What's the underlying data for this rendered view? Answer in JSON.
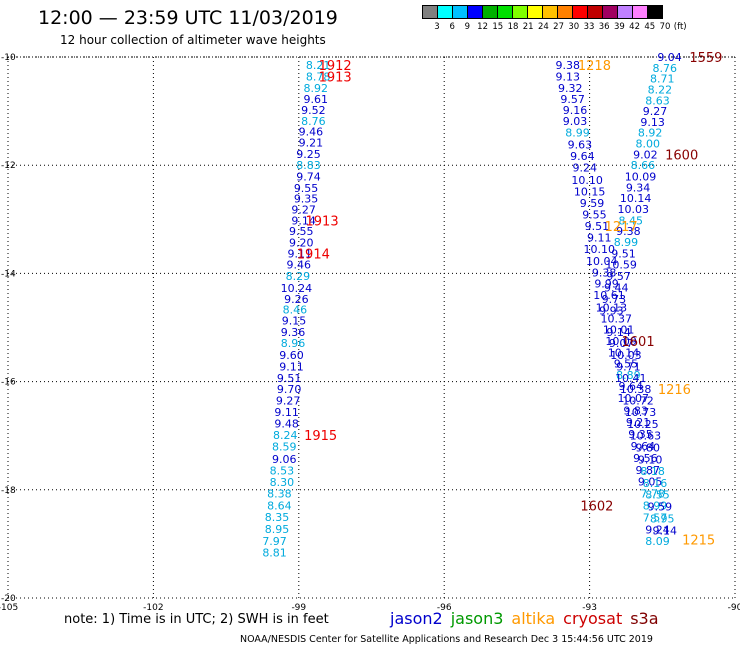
{
  "header": {
    "title": "12:00 — 23:59 UTC 11/03/2019",
    "subtitle": "12 hour collection of altimeter wave heights"
  },
  "color_scale": {
    "colors": [
      "#808080",
      "#00ffff",
      "#00c0ff",
      "#0000ff",
      "#00b000",
      "#00e000",
      "#80ff00",
      "#ffff00",
      "#ffc000",
      "#ff8000",
      "#ff0000",
      "#c00000",
      "#a00060",
      "#c080ff",
      "#ff80ff",
      "#000000"
    ],
    "ticks": [
      "3",
      "6",
      "9",
      "12",
      "15",
      "18",
      "21",
      "24",
      "27",
      "30",
      "33",
      "36",
      "39",
      "42",
      "45",
      "70",
      "(ft)"
    ]
  },
  "footer": {
    "note": "note:  1) Time is in UTC;  2) SWH is in feet",
    "credit": "NOAA/NESDIS Center for Satellite Applications and Research     Dec  3 15:44:56 UTC 2019",
    "satellites": [
      {
        "name": "jason2",
        "color": "#0000cc"
      },
      {
        "name": "jason3",
        "color": "#009900"
      },
      {
        "name": "altika",
        "color": "#ff9900"
      },
      {
        "name": "cryosat",
        "color": "#cc0000"
      },
      {
        "name": "s3a",
        "color": "#800000"
      }
    ]
  },
  "chart_data": {
    "type": "scatter",
    "title": "12 hour collection of altimeter wave heights",
    "xlabel": "",
    "ylabel": "",
    "xlim": [
      -105,
      -90
    ],
    "ylim": [
      -20,
      -10
    ],
    "x_ticks": [
      "-105",
      "-102",
      "-99",
      "-96",
      "-93",
      "-90"
    ],
    "y_ticks": [
      "-10",
      "-12",
      "-14",
      "-16",
      "-18",
      "-20"
    ],
    "grid": true,
    "colors": {
      "light": "#00aadd",
      "dark": "#0000cc",
      "red": "#ee0000",
      "maroon": "#880000",
      "orange": "#ff9900"
    },
    "series": [
      {
        "track": 1,
        "points": [
          {
            "lon": -98.6,
            "lat": -10.15,
            "v": "8.21",
            "c": "light"
          },
          {
            "lon": -98.6,
            "lat": -10.36,
            "v": "8.78",
            "c": "light"
          },
          {
            "lon": -98.65,
            "lat": -10.57,
            "v": "8.92",
            "c": "light"
          },
          {
            "lon": -98.65,
            "lat": -10.78,
            "v": "9.61",
            "c": "dark"
          },
          {
            "lon": -98.7,
            "lat": -10.98,
            "v": "9.52",
            "c": "dark"
          },
          {
            "lon": -98.7,
            "lat": -11.18,
            "v": "8.76",
            "c": "light"
          },
          {
            "lon": -98.75,
            "lat": -11.38,
            "v": "9.46",
            "c": "dark"
          },
          {
            "lon": -98.75,
            "lat": -11.58,
            "v": "9.21",
            "c": "dark"
          },
          {
            "lon": -98.8,
            "lat": -11.79,
            "v": "9.25",
            "c": "dark"
          },
          {
            "lon": -98.8,
            "lat": -12.0,
            "v": "8.83",
            "c": "light"
          },
          {
            "lon": -98.8,
            "lat": -12.21,
            "v": "9.74",
            "c": "dark"
          },
          {
            "lon": -98.85,
            "lat": -12.42,
            "v": "9.55",
            "c": "dark"
          },
          {
            "lon": -98.85,
            "lat": -12.62,
            "v": "9.35",
            "c": "dark"
          },
          {
            "lon": -98.9,
            "lat": -12.82,
            "v": "9.27",
            "c": "dark"
          },
          {
            "lon": -98.9,
            "lat": -13.02,
            "v": "9.14",
            "c": "dark"
          },
          {
            "lon": -98.95,
            "lat": -13.22,
            "v": "9.55",
            "c": "dark"
          },
          {
            "lon": -98.95,
            "lat": -13.43,
            "v": "9.20",
            "c": "dark"
          },
          {
            "lon": -98.98,
            "lat": -13.63,
            "v": "9.11",
            "c": "dark"
          },
          {
            "lon": -99.0,
            "lat": -13.84,
            "v": "9.46",
            "c": "dark"
          },
          {
            "lon": -99.02,
            "lat": -14.05,
            "v": "8.29",
            "c": "light"
          },
          {
            "lon": -99.05,
            "lat": -14.27,
            "v": "10.24",
            "c": "dark"
          },
          {
            "lon": -99.05,
            "lat": -14.47,
            "v": "9.26",
            "c": "dark"
          },
          {
            "lon": -99.08,
            "lat": -14.67,
            "v": "8.46",
            "c": "light"
          },
          {
            "lon": -99.1,
            "lat": -14.87,
            "v": "9.15",
            "c": "dark"
          },
          {
            "lon": -99.12,
            "lat": -15.08,
            "v": "9.36",
            "c": "dark"
          },
          {
            "lon": -99.12,
            "lat": -15.29,
            "v": "8.96",
            "c": "light"
          },
          {
            "lon": -99.15,
            "lat": -15.51,
            "v": "9.60",
            "c": "dark"
          },
          {
            "lon": -99.15,
            "lat": -15.72,
            "v": "9.11",
            "c": "dark"
          },
          {
            "lon": -99.2,
            "lat": -15.93,
            "v": "9.51",
            "c": "dark"
          },
          {
            "lon": -99.2,
            "lat": -16.14,
            "v": "9.70",
            "c": "dark"
          },
          {
            "lon": -99.22,
            "lat": -16.35,
            "v": "9.27",
            "c": "dark"
          },
          {
            "lon": -99.25,
            "lat": -16.56,
            "v": "9.11",
            "c": "dark"
          },
          {
            "lon": -99.25,
            "lat": -16.77,
            "v": "9.48",
            "c": "dark"
          },
          {
            "lon": -99.28,
            "lat": -16.99,
            "v": "8.24",
            "c": "light"
          },
          {
            "lon": -99.3,
            "lat": -17.2,
            "v": "8.59",
            "c": "light"
          },
          {
            "lon": -99.3,
            "lat": -17.43,
            "v": "9.06",
            "c": "dark"
          },
          {
            "lon": -99.35,
            "lat": -17.64,
            "v": "8.53",
            "c": "light"
          },
          {
            "lon": -99.35,
            "lat": -17.86,
            "v": "8.30",
            "c": "light"
          },
          {
            "lon": -99.4,
            "lat": -18.07,
            "v": "8.38",
            "c": "light"
          },
          {
            "lon": -99.4,
            "lat": -18.29,
            "v": "8.64",
            "c": "light"
          },
          {
            "lon": -99.45,
            "lat": -18.5,
            "v": "8.35",
            "c": "light"
          },
          {
            "lon": -99.45,
            "lat": -18.72,
            "v": "8.95",
            "c": "light"
          },
          {
            "lon": -99.5,
            "lat": -18.95,
            "v": "7.97",
            "c": "light"
          },
          {
            "lon": -99.5,
            "lat": -19.16,
            "v": "8.81",
            "c": "light"
          }
        ]
      },
      {
        "track": 2,
        "points": [
          {
            "lon": -93.45,
            "lat": -10.15,
            "v": "9.38",
            "c": "dark"
          },
          {
            "lon": -93.45,
            "lat": -10.36,
            "v": "9.13",
            "c": "dark"
          },
          {
            "lon": -93.4,
            "lat": -10.57,
            "v": "9.32",
            "c": "dark"
          },
          {
            "lon": -93.35,
            "lat": -10.78,
            "v": "9.57",
            "c": "dark"
          },
          {
            "lon": -93.3,
            "lat": -10.98,
            "v": "9.16",
            "c": "dark"
          },
          {
            "lon": -93.3,
            "lat": -11.18,
            "v": "9.03",
            "c": "dark"
          },
          {
            "lon": -93.25,
            "lat": -11.4,
            "v": "8.99",
            "c": "light"
          },
          {
            "lon": -93.2,
            "lat": -11.62,
            "v": "9.63",
            "c": "dark"
          },
          {
            "lon": -93.15,
            "lat": -11.83,
            "v": "9.64",
            "c": "dark"
          },
          {
            "lon": -93.1,
            "lat": -12.04,
            "v": "9.24",
            "c": "dark"
          },
          {
            "lon": -93.05,
            "lat": -12.27,
            "v": "10.10",
            "c": "dark"
          },
          {
            "lon": -93.0,
            "lat": -12.49,
            "v": "10.15",
            "c": "dark"
          },
          {
            "lon": -92.95,
            "lat": -12.7,
            "v": "9.59",
            "c": "dark"
          },
          {
            "lon": -92.9,
            "lat": -12.91,
            "v": "9.55",
            "c": "dark"
          },
          {
            "lon": -92.85,
            "lat": -13.12,
            "v": "9.51",
            "c": "dark"
          },
          {
            "lon": -92.8,
            "lat": -13.34,
            "v": "9.11",
            "c": "dark"
          },
          {
            "lon": -92.8,
            "lat": -13.55,
            "v": "10.10",
            "c": "dark"
          },
          {
            "lon": -92.75,
            "lat": -13.77,
            "v": "10.04",
            "c": "dark"
          },
          {
            "lon": -92.7,
            "lat": -13.98,
            "v": "9.38",
            "c": "dark"
          },
          {
            "lon": -92.65,
            "lat": -14.19,
            "v": "9.99",
            "c": "dark"
          },
          {
            "lon": -92.6,
            "lat": -14.4,
            "v": "10.61",
            "c": "dark"
          },
          {
            "lon": -92.55,
            "lat": -14.63,
            "v": "10.13",
            "c": "dark"
          },
          {
            "lon": -92.45,
            "lat": -14.83,
            "v": "10.37",
            "c": "dark"
          },
          {
            "lon": -92.4,
            "lat": -15.04,
            "v": "10.01",
            "c": "dark"
          },
          {
            "lon": -92.35,
            "lat": -15.25,
            "v": "10.09",
            "c": "dark"
          },
          {
            "lon": -92.3,
            "lat": -15.46,
            "v": "10.14",
            "c": "dark"
          },
          {
            "lon": -92.25,
            "lat": -15.67,
            "v": "9.55",
            "c": "dark"
          },
          {
            "lon": -92.2,
            "lat": -15.88,
            "v": "8.89",
            "c": "light"
          },
          {
            "lon": -92.15,
            "lat": -16.08,
            "v": "9.64",
            "c": "dark"
          },
          {
            "lon": -92.1,
            "lat": -16.3,
            "v": "10.07",
            "c": "dark"
          },
          {
            "lon": -92.05,
            "lat": -16.53,
            "v": "9.83",
            "c": "dark"
          },
          {
            "lon": -92.0,
            "lat": -16.75,
            "v": "9.21",
            "c": "dark"
          },
          {
            "lon": -91.95,
            "lat": -16.97,
            "v": "9.35",
            "c": "dark"
          },
          {
            "lon": -91.9,
            "lat": -17.19,
            "v": "9.64",
            "c": "dark"
          },
          {
            "lon": -91.85,
            "lat": -17.41,
            "v": "9.56",
            "c": "dark"
          },
          {
            "lon": -91.8,
            "lat": -17.63,
            "v": "9.87",
            "c": "dark"
          },
          {
            "lon": -91.75,
            "lat": -17.85,
            "v": "9.05",
            "c": "dark"
          },
          {
            "lon": -91.7,
            "lat": -18.07,
            "v": "7.78",
            "c": "light"
          },
          {
            "lon": -91.65,
            "lat": -18.29,
            "v": "8.99",
            "c": "light"
          },
          {
            "lon": -91.65,
            "lat": -18.51,
            "v": "7.57",
            "c": "light"
          },
          {
            "lon": -91.6,
            "lat": -18.73,
            "v": "9.24",
            "c": "dark"
          },
          {
            "lon": -91.6,
            "lat": -18.95,
            "v": "8.09",
            "c": "light"
          }
        ]
      },
      {
        "track": 3,
        "points": [
          {
            "lon": -91.35,
            "lat": -10.0,
            "v": "9.04",
            "c": "dark"
          },
          {
            "lon": -91.45,
            "lat": -10.2,
            "v": "8.76",
            "c": "light"
          },
          {
            "lon": -91.5,
            "lat": -10.4,
            "v": "8.71",
            "c": "light"
          },
          {
            "lon": -91.55,
            "lat": -10.6,
            "v": "8.22",
            "c": "light"
          },
          {
            "lon": -91.6,
            "lat": -10.8,
            "v": "8.63",
            "c": "light"
          },
          {
            "lon": -91.65,
            "lat": -11.0,
            "v": "9.27",
            "c": "dark"
          },
          {
            "lon": -91.7,
            "lat": -11.2,
            "v": "9.13",
            "c": "dark"
          },
          {
            "lon": -91.75,
            "lat": -11.4,
            "v": "8.92",
            "c": "light"
          },
          {
            "lon": -91.8,
            "lat": -11.6,
            "v": "8.00",
            "c": "light"
          },
          {
            "lon": -91.85,
            "lat": -11.8,
            "v": "9.02",
            "c": "dark"
          },
          {
            "lon": -91.9,
            "lat": -12.0,
            "v": "8.66",
            "c": "light"
          },
          {
            "lon": -91.95,
            "lat": -12.21,
            "v": "10.09",
            "c": "dark"
          },
          {
            "lon": -92.0,
            "lat": -12.41,
            "v": "9.34",
            "c": "dark"
          },
          {
            "lon": -92.05,
            "lat": -12.61,
            "v": "10.14",
            "c": "dark"
          },
          {
            "lon": -92.1,
            "lat": -12.81,
            "v": "10.03",
            "c": "dark"
          },
          {
            "lon": -92.15,
            "lat": -13.02,
            "v": "8.45",
            "c": "light"
          },
          {
            "lon": -92.2,
            "lat": -13.22,
            "v": "9.38",
            "c": "dark"
          },
          {
            "lon": -92.25,
            "lat": -13.42,
            "v": "8.99",
            "c": "light"
          },
          {
            "lon": -92.3,
            "lat": -13.63,
            "v": "9.51",
            "c": "dark"
          },
          {
            "lon": -92.35,
            "lat": -13.84,
            "v": "10.59",
            "c": "dark"
          },
          {
            "lon": -92.4,
            "lat": -14.05,
            "v": "9.57",
            "c": "dark"
          },
          {
            "lon": -92.45,
            "lat": -14.26,
            "v": "9.44",
            "c": "dark"
          },
          {
            "lon": -92.5,
            "lat": -14.47,
            "v": "9.73",
            "c": "dark"
          },
          {
            "lon": -92.55,
            "lat": -14.69,
            "v": "9.93",
            "c": "dark"
          },
          {
            "lon": -92.4,
            "lat": -15.08,
            "v": "9.14",
            "c": "dark"
          },
          {
            "lon": -92.35,
            "lat": -15.29,
            "v": "9.07",
            "c": "dark"
          },
          {
            "lon": -92.25,
            "lat": -15.51,
            "v": "10.03",
            "c": "dark"
          },
          {
            "lon": -92.2,
            "lat": -15.72,
            "v": "9.71",
            "c": "dark"
          },
          {
            "lon": -92.15,
            "lat": -15.93,
            "v": "10.41",
            "c": "dark"
          },
          {
            "lon": -92.05,
            "lat": -16.14,
            "v": "10.38",
            "c": "dark"
          },
          {
            "lon": -92.0,
            "lat": -16.35,
            "v": "10.72",
            "c": "dark"
          },
          {
            "lon": -91.95,
            "lat": -16.56,
            "v": "10.73",
            "c": "dark"
          },
          {
            "lon": -91.9,
            "lat": -16.78,
            "v": "10.25",
            "c": "dark"
          },
          {
            "lon": -91.85,
            "lat": -17.0,
            "v": "10.63",
            "c": "dark"
          },
          {
            "lon": -91.8,
            "lat": -17.22,
            "v": "9.80",
            "c": "dark"
          },
          {
            "lon": -91.75,
            "lat": -17.44,
            "v": "9.10",
            "c": "dark"
          },
          {
            "lon": -91.7,
            "lat": -17.65,
            "v": "8.18",
            "c": "light"
          },
          {
            "lon": -91.65,
            "lat": -17.87,
            "v": "8.16",
            "c": "light"
          },
          {
            "lon": -91.6,
            "lat": -18.09,
            "v": "8.55",
            "c": "light"
          },
          {
            "lon": -91.55,
            "lat": -18.31,
            "v": "9.59",
            "c": "dark"
          },
          {
            "lon": -91.5,
            "lat": -18.53,
            "v": "8.95",
            "c": "light"
          },
          {
            "lon": -91.45,
            "lat": -18.75,
            "v": "9.14",
            "c": "dark"
          }
        ]
      }
    ],
    "time_labels": [
      {
        "lon": -98.25,
        "lat": -10.15,
        "v": "1912",
        "c": "red"
      },
      {
        "lon": -98.25,
        "lat": -10.36,
        "v": "1913",
        "c": "red"
      },
      {
        "lon": -98.52,
        "lat": -13.02,
        "v": "1913",
        "c": "red"
      },
      {
        "lon": -98.7,
        "lat": -13.63,
        "v": "1914",
        "c": "red"
      },
      {
        "lon": -98.55,
        "lat": -16.99,
        "v": "1915",
        "c": "red"
      },
      {
        "lon": -92.9,
        "lat": -10.15,
        "v": "1218",
        "c": "orange"
      },
      {
        "lon": -92.35,
        "lat": -13.12,
        "v": "1217",
        "c": "orange"
      },
      {
        "lon": -91.25,
        "lat": -16.14,
        "v": "1216",
        "c": "orange"
      },
      {
        "lon": -90.75,
        "lat": -18.92,
        "v": "1215",
        "c": "orange"
      },
      {
        "lon": -90.6,
        "lat": -10.0,
        "v": "1559",
        "c": "maroon"
      },
      {
        "lon": -91.1,
        "lat": -11.8,
        "v": "1600",
        "c": "maroon"
      },
      {
        "lon": -92.0,
        "lat": -15.25,
        "v": "1601",
        "c": "maroon"
      },
      {
        "lon": -92.85,
        "lat": -18.29,
        "v": "1602",
        "c": "maroon"
      }
    ]
  }
}
